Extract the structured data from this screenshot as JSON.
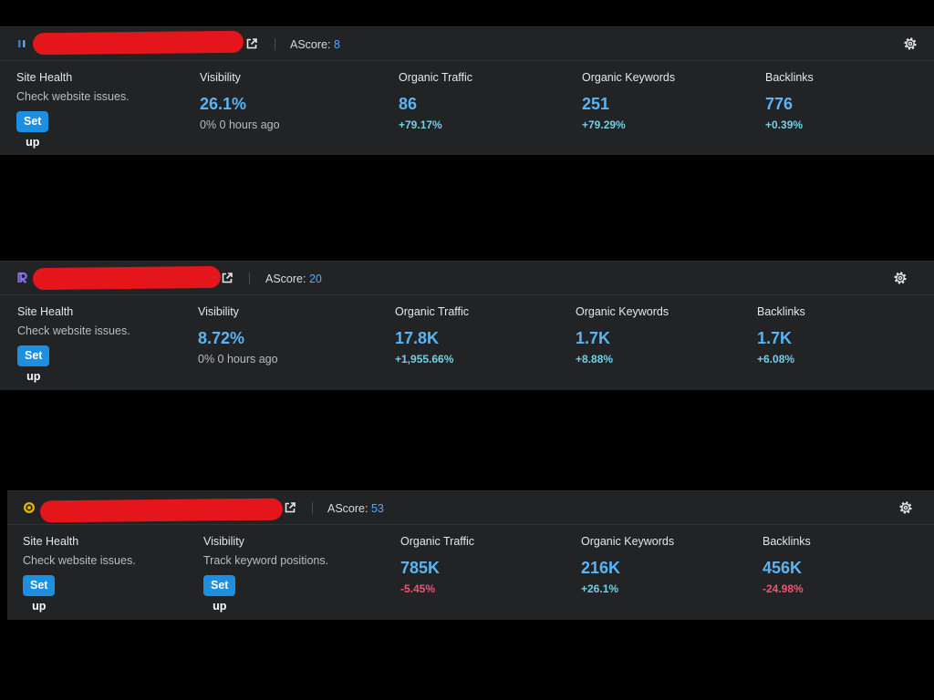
{
  "colors": {
    "page_background": "#000000",
    "card_background": "#222325",
    "value_blue": "#5ab4f5",
    "change_up": "#72cfe6",
    "change_down": "#ec5677",
    "button_blue": "#1d8fe0",
    "redaction_red": "#e4161b"
  },
  "projects": [
    {
      "favicon": "bars-logo-icon",
      "ascore_label": "AScore:",
      "ascore_value": "8",
      "site_health": {
        "label": "Site Health",
        "description": "Check website issues.",
        "button": "Set up"
      },
      "visibility": {
        "label": "Visibility",
        "value": "26.1%",
        "note": "0%  0 hours ago"
      },
      "organic_traffic": {
        "label": "Organic Traffic",
        "value": "86",
        "change": "+79.17%",
        "trend": "up"
      },
      "organic_keywords": {
        "label": "Organic Keywords",
        "value": "251",
        "change": "+79.29%",
        "trend": "up"
      },
      "backlinks": {
        "label": "Backlinks",
        "value": "776",
        "change": "+0.39%",
        "trend": "up"
      }
    },
    {
      "favicon": "r-logo-icon",
      "ascore_label": "AScore:",
      "ascore_value": "20",
      "site_health": {
        "label": "Site Health",
        "description": "Check website issues.",
        "button": "Set up"
      },
      "visibility": {
        "label": "Visibility",
        "value": "8.72%",
        "note": "0%  0 hours ago"
      },
      "organic_traffic": {
        "label": "Organic Traffic",
        "value": "17.8K",
        "change": "+1,955.66%",
        "trend": "up"
      },
      "organic_keywords": {
        "label": "Organic Keywords",
        "value": "1.7K",
        "change": "+8.88%",
        "trend": "up"
      },
      "backlinks": {
        "label": "Backlinks",
        "value": "1.7K",
        "change": "+6.08%",
        "trend": "up"
      }
    },
    {
      "favicon": "round-logo-icon",
      "ascore_label": "AScore:",
      "ascore_value": "53",
      "site_health": {
        "label": "Site Health",
        "description": "Check website issues.",
        "button": "Set up"
      },
      "visibility": {
        "label": "Visibility",
        "description": "Track keyword positions.",
        "button": "Set up"
      },
      "organic_traffic": {
        "label": "Organic Traffic",
        "value": "785K",
        "change": "-5.45%",
        "trend": "down"
      },
      "organic_keywords": {
        "label": "Organic Keywords",
        "value": "216K",
        "change": "+26.1%",
        "trend": "up"
      },
      "backlinks": {
        "label": "Backlinks",
        "value": "456K",
        "change": "-24.98%",
        "trend": "down"
      }
    }
  ]
}
